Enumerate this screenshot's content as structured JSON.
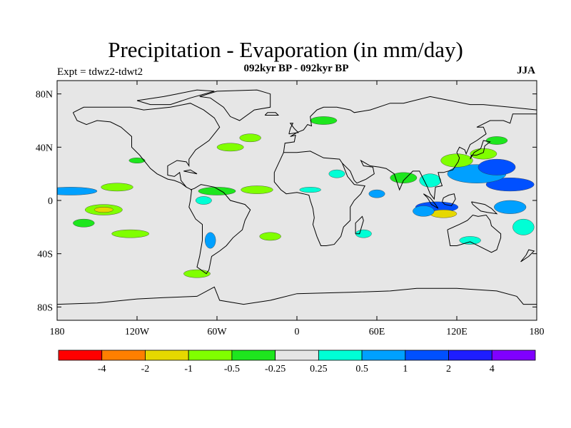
{
  "title": "Precipitation - Evaporation (in mm/day)",
  "subtitle": "092kyr BP - 092kyr BP",
  "experiment": "Expt = tdwz2-tdwt2",
  "season": "JJA",
  "map": {
    "projection": "cylindrical equidistant",
    "lon_range": [
      -180,
      180
    ],
    "lat_range": [
      -90,
      90
    ],
    "background_color": "#e6e6e6",
    "lat_ticks": [
      {
        "value": 80,
        "label": "80N"
      },
      {
        "value": 40,
        "label": "40N"
      },
      {
        "value": 0,
        "label": "0"
      },
      {
        "value": -40,
        "label": "40S"
      },
      {
        "value": -80,
        "label": "80S"
      }
    ],
    "lon_ticks": [
      {
        "value": -180,
        "label": "180"
      },
      {
        "value": -120,
        "label": "120W"
      },
      {
        "value": -60,
        "label": "60W"
      },
      {
        "value": 0,
        "label": "0"
      },
      {
        "value": 60,
        "label": "60E"
      },
      {
        "value": 120,
        "label": "120E"
      },
      {
        "value": 180,
        "label": "180"
      }
    ]
  },
  "colorbar": {
    "colors": [
      "#ff0000",
      "#ff7f00",
      "#e6d800",
      "#80ff00",
      "#1ee61e",
      "#e6e6e6",
      "#00ffd5",
      "#00a0ff",
      "#0050ff",
      "#1e1eff",
      "#8000ff"
    ],
    "labels": [
      "-4",
      "-2",
      "-1",
      "-0.5",
      "-0.25",
      "0.25",
      "0.5",
      "1",
      "2",
      "4"
    ]
  },
  "features": [
    {
      "lon": 160,
      "lat": 12,
      "rx": 18,
      "ry": 5,
      "class": 8
    },
    {
      "lon": 135,
      "lat": 20,
      "rx": 22,
      "ry": 7,
      "class": 7
    },
    {
      "lon": 150,
      "lat": 25,
      "rx": 14,
      "ry": 6,
      "class": 8
    },
    {
      "lon": 105,
      "lat": -5,
      "rx": 16,
      "ry": 4,
      "class": 8
    },
    {
      "lon": 110,
      "lat": -10,
      "rx": 10,
      "ry": 3,
      "class": 2
    },
    {
      "lon": 95,
      "lat": -8,
      "rx": 8,
      "ry": 4,
      "class": 7
    },
    {
      "lon": 120,
      "lat": 30,
      "rx": 12,
      "ry": 5,
      "class": 3
    },
    {
      "lon": 140,
      "lat": 35,
      "rx": 10,
      "ry": 4,
      "class": 3
    },
    {
      "lon": 80,
      "lat": 17,
      "rx": 10,
      "ry": 4,
      "class": 4
    },
    {
      "lon": 100,
      "lat": 15,
      "rx": 8,
      "ry": 5,
      "class": 6
    },
    {
      "lon": 160,
      "lat": -5,
      "rx": 12,
      "ry": 5,
      "class": 7
    },
    {
      "lon": 170,
      "lat": -20,
      "rx": 8,
      "ry": 6,
      "class": 6
    },
    {
      "lon": -170,
      "lat": 7,
      "rx": 20,
      "ry": 3,
      "class": 7
    },
    {
      "lon": -135,
      "lat": 10,
      "rx": 12,
      "ry": 3,
      "class": 3
    },
    {
      "lon": -145,
      "lat": -7,
      "rx": 14,
      "ry": 4,
      "class": 3
    },
    {
      "lon": -145,
      "lat": -7,
      "rx": 7,
      "ry": 2,
      "class": 2
    },
    {
      "lon": -160,
      "lat": -17,
      "rx": 8,
      "ry": 3,
      "class": 4
    },
    {
      "lon": -125,
      "lat": -25,
      "rx": 14,
      "ry": 3,
      "class": 3
    },
    {
      "lon": -60,
      "lat": 7,
      "rx": 14,
      "ry": 3,
      "class": 4
    },
    {
      "lon": -30,
      "lat": 8,
      "rx": 12,
      "ry": 3,
      "class": 3
    },
    {
      "lon": -70,
      "lat": 0,
      "rx": 6,
      "ry": 3,
      "class": 6
    },
    {
      "lon": -65,
      "lat": -30,
      "rx": 4,
      "ry": 6,
      "class": 7
    },
    {
      "lon": -75,
      "lat": -55,
      "rx": 10,
      "ry": 3,
      "class": 3
    },
    {
      "lon": -20,
      "lat": -27,
      "rx": 8,
      "ry": 3,
      "class": 3
    },
    {
      "lon": -50,
      "lat": 40,
      "rx": 10,
      "ry": 3,
      "class": 3
    },
    {
      "lon": -35,
      "lat": 47,
      "rx": 8,
      "ry": 3,
      "class": 3
    },
    {
      "lon": 30,
      "lat": 20,
      "rx": 6,
      "ry": 3,
      "class": 6
    },
    {
      "lon": 20,
      "lat": 60,
      "rx": 10,
      "ry": 3,
      "class": 4
    },
    {
      "lon": 10,
      "lat": 8,
      "rx": 8,
      "ry": 2,
      "class": 6
    },
    {
      "lon": -120,
      "lat": 30,
      "rx": 6,
      "ry": 2,
      "class": 4
    },
    {
      "lon": 150,
      "lat": 45,
      "rx": 8,
      "ry": 3,
      "class": 4
    },
    {
      "lon": 130,
      "lat": -30,
      "rx": 8,
      "ry": 3,
      "class": 6
    },
    {
      "lon": 50,
      "lat": -25,
      "rx": 6,
      "ry": 3,
      "class": 6
    },
    {
      "lon": 60,
      "lat": 5,
      "rx": 6,
      "ry": 3,
      "class": 7
    }
  ],
  "coastlines": [
    [
      [
        -168,
        66
      ],
      [
        -160,
        70
      ],
      [
        -140,
        70
      ],
      [
        -125,
        70
      ],
      [
        -115,
        68
      ],
      [
        -95,
        70
      ],
      [
        -80,
        73
      ],
      [
        -70,
        68
      ],
      [
        -62,
        62
      ],
      [
        -58,
        55
      ],
      [
        -66,
        45
      ],
      [
        -76,
        38
      ],
      [
        -81,
        31
      ],
      [
        -81,
        26
      ],
      [
        -83,
        29
      ],
      [
        -90,
        30
      ],
      [
        -97,
        26
      ],
      [
        -97,
        19
      ],
      [
        -92,
        18
      ],
      [
        -88,
        21
      ],
      [
        -87,
        15
      ],
      [
        -83,
        10
      ],
      [
        -79,
        8
      ],
      [
        -80,
        0
      ],
      [
        -81,
        -5
      ],
      [
        -76,
        -14
      ],
      [
        -71,
        -18
      ],
      [
        -71,
        -30
      ],
      [
        -73,
        -42
      ],
      [
        -75,
        -50
      ],
      [
        -68,
        -55
      ],
      [
        -66,
        -52
      ],
      [
        -64,
        -42
      ],
      [
        -58,
        -38
      ],
      [
        -53,
        -34
      ],
      [
        -48,
        -28
      ],
      [
        -41,
        -22
      ],
      [
        -39,
        -15
      ],
      [
        -35,
        -7
      ],
      [
        -39,
        -3
      ],
      [
        -50,
        0
      ],
      [
        -55,
        6
      ],
      [
        -62,
        10
      ],
      [
        -72,
        12
      ],
      [
        -77,
        9
      ],
      [
        -80,
        8
      ]
    ],
    [
      [
        -168,
        66
      ],
      [
        -165,
        60
      ],
      [
        -158,
        57
      ],
      [
        -150,
        60
      ],
      [
        -140,
        59
      ],
      [
        -132,
        55
      ],
      [
        -124,
        48
      ],
      [
        -124,
        40
      ],
      [
        -118,
        34
      ],
      [
        -110,
        24
      ],
      [
        -105,
        20
      ],
      [
        -97,
        16
      ],
      [
        -92,
        15
      ],
      [
        -87,
        13
      ],
      [
        -83,
        10
      ]
    ],
    [
      [
        -73,
        78
      ],
      [
        -60,
        82
      ],
      [
        -30,
        83
      ],
      [
        -20,
        80
      ],
      [
        -20,
        70
      ],
      [
        -32,
        68
      ],
      [
        -43,
        60
      ],
      [
        -50,
        63
      ],
      [
        -55,
        70
      ],
      [
        -65,
        77
      ],
      [
        -73,
        78
      ]
    ],
    [
      [
        -10,
        36
      ],
      [
        -9,
        43
      ],
      [
        -2,
        44
      ],
      [
        -1,
        49
      ],
      [
        -5,
        48
      ],
      [
        0,
        51
      ],
      [
        5,
        53
      ],
      [
        8,
        57
      ],
      [
        11,
        56
      ],
      [
        10,
        63
      ],
      [
        15,
        68
      ],
      [
        20,
        70
      ],
      [
        30,
        70
      ],
      [
        40,
        68
      ],
      [
        43,
        66
      ],
      [
        55,
        68
      ],
      [
        70,
        73
      ],
      [
        80,
        73
      ],
      [
        100,
        78
      ],
      [
        110,
        76
      ],
      [
        130,
        72
      ],
      [
        140,
        72
      ],
      [
        160,
        70
      ],
      [
        180,
        68
      ]
    ],
    [
      [
        -10,
        36
      ],
      [
        -17,
        21
      ],
      [
        -17,
        14
      ],
      [
        -12,
        8
      ],
      [
        -8,
        5
      ],
      [
        0,
        6
      ],
      [
        5,
        5
      ],
      [
        9,
        4
      ],
      [
        10,
        0
      ],
      [
        12,
        -6
      ],
      [
        13,
        -13
      ],
      [
        12,
        -18
      ],
      [
        15,
        -27
      ],
      [
        18,
        -34
      ],
      [
        22,
        -34
      ],
      [
        28,
        -33
      ],
      [
        33,
        -27
      ],
      [
        35,
        -20
      ],
      [
        40,
        -15
      ],
      [
        40,
        -5
      ],
      [
        43,
        0
      ],
      [
        48,
        5
      ],
      [
        51,
        11
      ],
      [
        43,
        12
      ],
      [
        38,
        18
      ],
      [
        34,
        28
      ],
      [
        32,
        31
      ],
      [
        20,
        32
      ],
      [
        10,
        37
      ],
      [
        0,
        36
      ],
      [
        -10,
        36
      ]
    ],
    [
      [
        34,
        28
      ],
      [
        40,
        22
      ],
      [
        43,
        15
      ],
      [
        45,
        13
      ],
      [
        52,
        16
      ],
      [
        58,
        20
      ],
      [
        57,
        25
      ],
      [
        50,
        26
      ],
      [
        48,
        30
      ],
      [
        55,
        26
      ],
      [
        62,
        25
      ],
      [
        67,
        24
      ],
      [
        73,
        20
      ],
      [
        77,
        8
      ],
      [
        80,
        15
      ],
      [
        87,
        22
      ],
      [
        92,
        22
      ],
      [
        95,
        16
      ],
      [
        98,
        10
      ],
      [
        100,
        5
      ],
      [
        103,
        1
      ],
      [
        104,
        10
      ],
      [
        109,
        11
      ],
      [
        107,
        17
      ],
      [
        106,
        21
      ],
      [
        110,
        21
      ],
      [
        117,
        23
      ],
      [
        121,
        29
      ],
      [
        122,
        32
      ],
      [
        120,
        36
      ],
      [
        122,
        40
      ],
      [
        126,
        38
      ],
      [
        127,
        35
      ],
      [
        130,
        42
      ],
      [
        135,
        45
      ],
      [
        142,
        50
      ],
      [
        140,
        55
      ],
      [
        135,
        55
      ],
      [
        145,
        60
      ],
      [
        155,
        60
      ],
      [
        160,
        58
      ],
      [
        162,
        65
      ],
      [
        170,
        65
      ],
      [
        180,
        65
      ]
    ],
    [
      [
        113,
        -22
      ],
      [
        115,
        -34
      ],
      [
        120,
        -34
      ],
      [
        130,
        -31
      ],
      [
        138,
        -35
      ],
      [
        146,
        -39
      ],
      [
        150,
        -37
      ],
      [
        153,
        -28
      ],
      [
        153,
        -25
      ],
      [
        146,
        -19
      ],
      [
        145,
        -15
      ],
      [
        142,
        -11
      ],
      [
        136,
        -12
      ],
      [
        132,
        -11
      ],
      [
        128,
        -15
      ],
      [
        124,
        -17
      ],
      [
        122,
        -18
      ],
      [
        113,
        -22
      ]
    ],
    [
      [
        -180,
        -78
      ],
      [
        -150,
        -77
      ],
      [
        -120,
        -74
      ],
      [
        -100,
        -73
      ],
      [
        -75,
        -72
      ],
      [
        -62,
        -65
      ],
      [
        -58,
        -75
      ],
      [
        -40,
        -78
      ],
      [
        -20,
        -75
      ],
      [
        0,
        -70
      ],
      [
        40,
        -69
      ],
      [
        70,
        -68
      ],
      [
        90,
        -66
      ],
      [
        120,
        -66
      ],
      [
        150,
        -68
      ],
      [
        165,
        -72
      ],
      [
        170,
        -78
      ],
      [
        180,
        -78
      ]
    ],
    [
      [
        130,
        31
      ],
      [
        131,
        34
      ],
      [
        135,
        34
      ],
      [
        140,
        36
      ],
      [
        141,
        41
      ],
      [
        145,
        44
      ],
      [
        140,
        45
      ],
      [
        138,
        39
      ],
      [
        133,
        36
      ],
      [
        130,
        31
      ]
    ],
    [
      [
        95,
        5
      ],
      [
        100,
        2
      ],
      [
        104,
        -3
      ],
      [
        106,
        -6
      ],
      [
        101,
        -3
      ],
      [
        98,
        2
      ],
      [
        95,
        5
      ]
    ],
    [
      [
        109,
        -1
      ],
      [
        110,
        2
      ],
      [
        114,
        4
      ],
      [
        118,
        5
      ],
      [
        119,
        1
      ],
      [
        116,
        -4
      ],
      [
        111,
        -3
      ],
      [
        109,
        -1
      ]
    ],
    [
      [
        131,
        -1
      ],
      [
        141,
        -3
      ],
      [
        146,
        -6
      ],
      [
        150,
        -10
      ],
      [
        143,
        -9
      ],
      [
        138,
        -8
      ],
      [
        132,
        -3
      ],
      [
        131,
        -1
      ]
    ],
    [
      [
        -6,
        50
      ],
      [
        -5,
        54
      ],
      [
        -3,
        58
      ],
      [
        -5,
        58
      ],
      [
        -2,
        54
      ],
      [
        1,
        51
      ],
      [
        -6,
        50
      ]
    ],
    [
      [
        44,
        -25
      ],
      [
        47,
        -25
      ],
      [
        50,
        -15
      ],
      [
        49,
        -12
      ],
      [
        44,
        -17
      ],
      [
        44,
        -25
      ]
    ],
    [
      [
        -24,
        64
      ],
      [
        -14,
        64
      ],
      [
        -16,
        66
      ],
      [
        -22,
        66
      ],
      [
        -24,
        64
      ]
    ],
    [
      [
        -85,
        22
      ],
      [
        -80,
        23
      ],
      [
        -75,
        20
      ],
      [
        -80,
        21
      ],
      [
        -85,
        22
      ]
    ],
    [
      [
        172,
        -41
      ],
      [
        174,
        -37
      ],
      [
        178,
        -38
      ],
      [
        174,
        -42
      ],
      [
        168,
        -46
      ],
      [
        172,
        -41
      ]
    ],
    [
      [
        -120,
        75
      ],
      [
        -100,
        78
      ],
      [
        -90,
        80
      ],
      [
        -75,
        83
      ],
      [
        -62,
        82
      ],
      [
        -80,
        77
      ],
      [
        -95,
        72
      ],
      [
        -110,
        72
      ],
      [
        -120,
        75
      ]
    ]
  ]
}
